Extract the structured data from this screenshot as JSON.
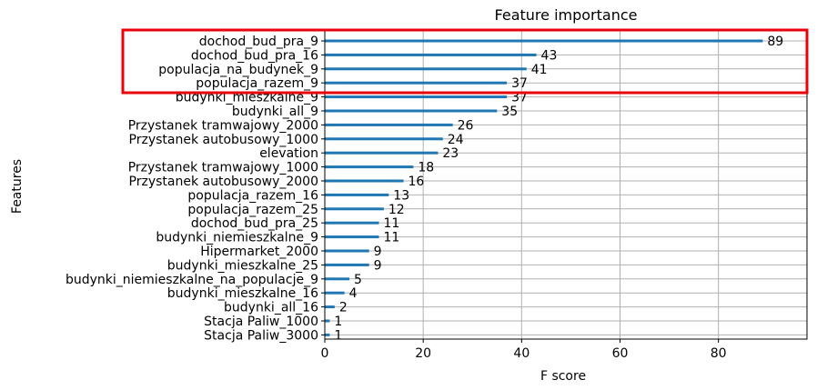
{
  "chart_data": {
    "type": "bar",
    "orientation": "horizontal",
    "title": "Feature importance",
    "xlabel": "F score",
    "ylabel": "Features",
    "xlim": [
      0,
      98
    ],
    "xticks": [
      0,
      20,
      40,
      60,
      80
    ],
    "grid": true,
    "bar_color": "#1f77b4",
    "highlight_box_color": "#e8000b",
    "highlighted_categories": [
      "dochod_bud_pra_9",
      "dochod_bud_pra_16",
      "populacja_na_budynek_9",
      "populacja_razem_9"
    ],
    "categories": [
      "dochod_bud_pra_9",
      "dochod_bud_pra_16",
      "populacja_na_budynek_9",
      "populacja_razem_9",
      "budynki_mieszkalne_9",
      "budynki_all_9",
      "Przystanek tramwajowy_2000",
      "Przystanek autobusowy_1000",
      "elevation",
      "Przystanek tramwajowy_1000",
      "Przystanek autobusowy_2000",
      "populacja_razem_16",
      "populacja_razem_25",
      "dochod_bud_pra_25",
      "budynki_niemieszkalne_9",
      "Hipermarket_2000",
      "budynki_mieszkalne_25",
      "budynki_niemieszkalne_na_populacje_9",
      "budynki_mieszkalne_16",
      "budynki_all_16",
      "Stacja Paliw_1000",
      "Stacja Paliw_3000"
    ],
    "values": [
      89,
      43,
      41,
      37,
      37,
      35,
      26,
      24,
      23,
      18,
      16,
      13,
      12,
      11,
      11,
      9,
      9,
      5,
      4,
      2,
      1,
      1
    ]
  }
}
